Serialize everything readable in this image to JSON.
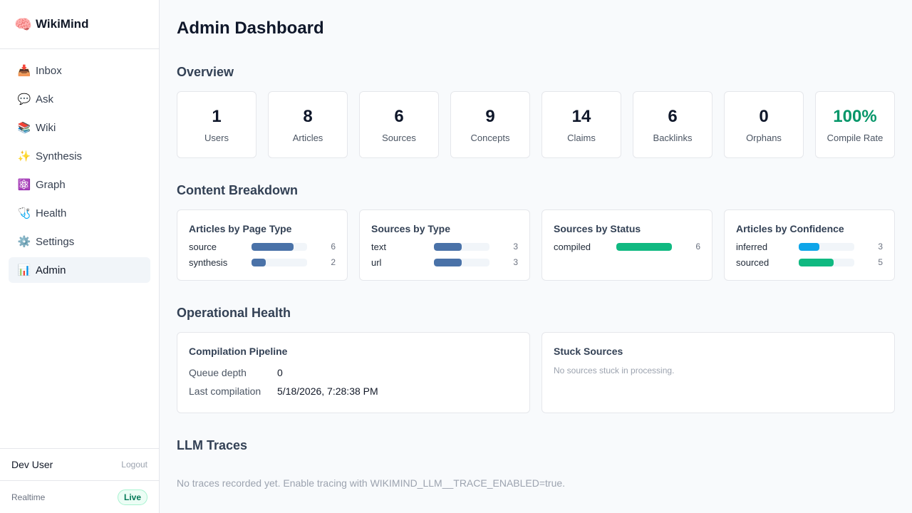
{
  "app": {
    "name": "WikiMind",
    "logo_icon": "🧠"
  },
  "sidebar": {
    "items": [
      {
        "icon": "📥",
        "icon_name": "inbox-icon",
        "label": "Inbox"
      },
      {
        "icon": "💬",
        "icon_name": "chat-icon",
        "label": "Ask"
      },
      {
        "icon": "📚",
        "icon_name": "books-icon",
        "label": "Wiki"
      },
      {
        "icon": "✨",
        "icon_name": "sparkles-icon",
        "label": "Synthesis"
      },
      {
        "icon": "⚛️",
        "icon_name": "atom-icon",
        "label": "Graph"
      },
      {
        "icon": "🩺",
        "icon_name": "stethoscope-icon",
        "label": "Health"
      },
      {
        "icon": "⚙️",
        "icon_name": "gear-icon",
        "label": "Settings"
      },
      {
        "icon": "📊",
        "icon_name": "bar-chart-icon",
        "label": "Admin"
      }
    ],
    "active": "Admin",
    "user": "Dev User",
    "logout_label": "Logout",
    "realtime_label": "Realtime",
    "realtime_status": "Live"
  },
  "page": {
    "title": "Admin Dashboard"
  },
  "overview": {
    "title": "Overview",
    "stats": [
      {
        "value": "1",
        "label": "Users"
      },
      {
        "value": "8",
        "label": "Articles"
      },
      {
        "value": "6",
        "label": "Sources"
      },
      {
        "value": "9",
        "label": "Concepts"
      },
      {
        "value": "14",
        "label": "Claims"
      },
      {
        "value": "6",
        "label": "Backlinks"
      },
      {
        "value": "0",
        "label": "Orphans"
      },
      {
        "value": "100%",
        "label": "Compile Rate"
      }
    ]
  },
  "breakdown": {
    "title": "Content Breakdown",
    "cards": [
      {
        "title": "Articles by Page Type",
        "max": 8,
        "rows": [
          {
            "label": "source",
            "count": 6,
            "color": "#4a72a8"
          },
          {
            "label": "synthesis",
            "count": 2,
            "color": "#4a72a8"
          }
        ]
      },
      {
        "title": "Sources by Type",
        "max": 6,
        "rows": [
          {
            "label": "text",
            "count": 3,
            "color": "#4a72a8"
          },
          {
            "label": "url",
            "count": 3,
            "color": "#4a72a8"
          }
        ]
      },
      {
        "title": "Sources by Status",
        "max": 6,
        "rows": [
          {
            "label": "compiled",
            "count": 6,
            "color": "#10b981"
          }
        ]
      },
      {
        "title": "Articles by Confidence",
        "max": 8,
        "rows": [
          {
            "label": "inferred",
            "count": 3,
            "color": "#0ea5e9"
          },
          {
            "label": "sourced",
            "count": 5,
            "color": "#10b981"
          }
        ]
      }
    ]
  },
  "operational": {
    "title": "Operational Health",
    "pipeline": {
      "title": "Compilation Pipeline",
      "queue_label": "Queue depth",
      "queue_value": "0",
      "last_label": "Last compilation",
      "last_value": "5/18/2026, 7:28:38 PM"
    },
    "stuck": {
      "title": "Stuck Sources",
      "empty": "No sources stuck in processing."
    }
  },
  "traces": {
    "title": "LLM Traces",
    "empty": "No traces recorded yet. Enable tracing with WIKIMIND_LLM__TRACE_ENABLED=true."
  },
  "colors": {
    "accent_green": "#059669",
    "bar_blue": "#4a72a8",
    "bar_sky": "#0ea5e9",
    "bar_green": "#10b981"
  }
}
